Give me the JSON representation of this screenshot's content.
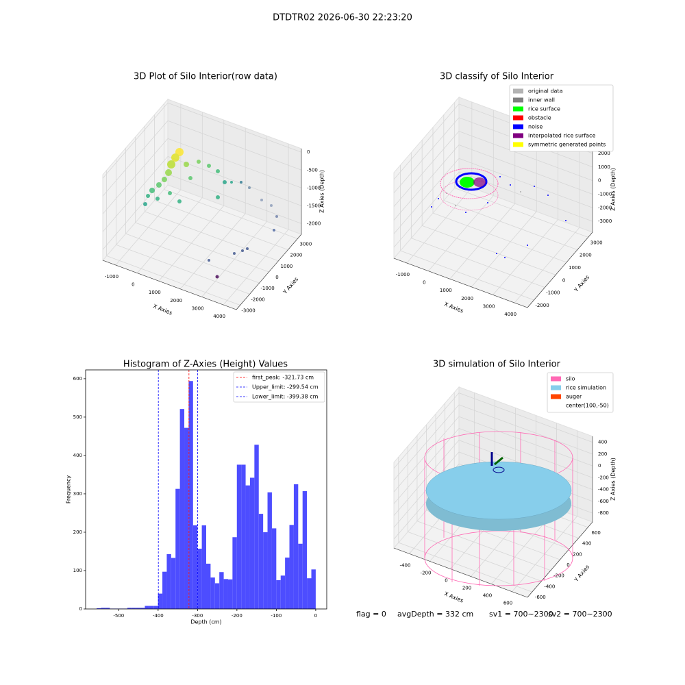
{
  "suptitle": "DTDTR02 2026-06-30 22:23:20",
  "chart_data": [
    {
      "type": "scatter3d",
      "title": "3D Plot of Silo Interior(row data)",
      "xlabel": "X Axies",
      "ylabel": "Y Axies",
      "zlabel": "Z Axies (Depth)",
      "xlim": [
        -1600,
        4600
      ],
      "xticks": [
        -1000,
        0,
        1000,
        2000,
        3000,
        4000
      ],
      "ylim": [
        -3400,
        3400
      ],
      "yticks": [
        -3000,
        -2000,
        -1000,
        0,
        1000,
        2000,
        3000
      ],
      "zlim": [
        -2300,
        100
      ],
      "zticks": [
        -2000,
        -1500,
        -1000,
        -500,
        0
      ]
    },
    {
      "type": "scatter3d",
      "title": "3D classify of Silo Interior",
      "xlabel": "X Axies",
      "ylabel": "Y Axies",
      "zlabel": "Z Axies (Depth)",
      "xlim": [
        -1600,
        4600
      ],
      "xticks": [
        -1000,
        0,
        1000,
        2000,
        3000,
        4000
      ],
      "ylim": [
        -2600,
        3400
      ],
      "yticks": [
        -2000,
        -1000,
        0,
        1000,
        2000,
        3000
      ],
      "zlim": [
        -3800,
        2500
      ],
      "zticks": [
        -3000,
        -2000,
        -1000,
        0,
        1000,
        2000
      ],
      "legend": [
        {
          "name": "original data",
          "color": "#b3b3b3"
        },
        {
          "name": "inner wall",
          "color": "#808080"
        },
        {
          "name": "rice surface",
          "color": "#00ff00"
        },
        {
          "name": "obstacle",
          "color": "#ff0000"
        },
        {
          "name": "noise",
          "color": "#0000ff"
        },
        {
          "name": "interpolated rice surface",
          "color": "#800080"
        },
        {
          "name": "symmetric generated points",
          "color": "#ffff00"
        }
      ]
    },
    {
      "type": "hist",
      "title": "Histogram of Z-Axies (Height) Values",
      "xlabel": "Depth (cm)",
      "ylabel": "Frequency",
      "color": "#4d4dff",
      "bins": [
        -556,
        -544.88,
        -533.76,
        -522.64,
        -511.52,
        -500.4,
        -489.28,
        -478.16,
        -467.04,
        -455.92,
        -444.8,
        -433.68,
        -422.56,
        -411.44,
        -400.32,
        -389.2,
        -378.08,
        -366.96,
        -355.84,
        -344.72,
        -333.6,
        -322.48,
        -311.36,
        -300.24,
        -289.12,
        -278,
        -266.88,
        -255.76,
        -244.64,
        -233.52,
        -222.4,
        -211.28,
        -200.16,
        -189.04,
        -177.92,
        -166.8,
        -155.68,
        -144.56,
        -133.44,
        -122.32,
        -111.2,
        -100.08,
        -88.96,
        -77.84,
        -66.72,
        -55.6,
        -44.48,
        -33.36,
        -22.24,
        -11.12,
        0
      ],
      "counts": [
        2,
        3,
        3,
        1,
        1,
        1,
        1,
        3,
        3,
        3,
        3,
        8,
        8,
        8,
        40,
        97,
        143,
        133,
        313,
        521,
        472,
        594,
        218,
        157,
        218,
        118,
        82,
        67,
        96,
        78,
        77,
        187,
        376,
        376,
        322,
        342,
        428,
        248,
        200,
        304,
        210,
        75,
        87,
        134,
        219,
        325,
        170,
        307,
        80,
        103
      ],
      "xlim": [
        -584,
        28
      ],
      "xticks": [
        -500,
        -400,
        -300,
        -200,
        -100,
        0
      ],
      "ylim": [
        0,
        623
      ],
      "yticks": [
        0,
        100,
        200,
        300,
        400,
        500,
        600
      ],
      "lines": [
        {
          "name": "first_peak: -321.73 cm",
          "value": -321.73,
          "color": "#ff0000"
        },
        {
          "name": "Upper_limit: -299.54 cm",
          "value": -299.54,
          "color": "#0000ff"
        },
        {
          "name": "Lower_limit: -399.38 cm",
          "value": -399.38,
          "color": "#0000ff"
        }
      ]
    },
    {
      "type": "surface3d",
      "title": "3D simulation of Silo Interior",
      "xlabel": "X Axies",
      "ylabel": "Y Axies",
      "zlabel": "Z Axies (Depth)",
      "xlim": [
        -550,
        750
      ],
      "xticks": [
        -400,
        -200,
        0,
        200,
        400,
        600
      ],
      "ylim": [
        -700,
        700
      ],
      "yticks": [
        -600,
        -400,
        -200,
        0,
        200,
        400,
        600
      ],
      "zlim": [
        -950,
        500
      ],
      "zticks": [
        -800,
        -600,
        -400,
        -200,
        0,
        200,
        400
      ],
      "legend": [
        {
          "name": "silo",
          "color": "#ff69b4"
        },
        {
          "name": "rice simulation",
          "color": "#87ceeb"
        },
        {
          "name": "auger",
          "color": "#ff4500"
        },
        {
          "name": "center(100,-50)"
        }
      ]
    }
  ],
  "footer": [
    "flag = 0",
    "avgDepth = 332 cm",
    "sv1 = 700~2300",
    "sv2 = 700~2300"
  ]
}
